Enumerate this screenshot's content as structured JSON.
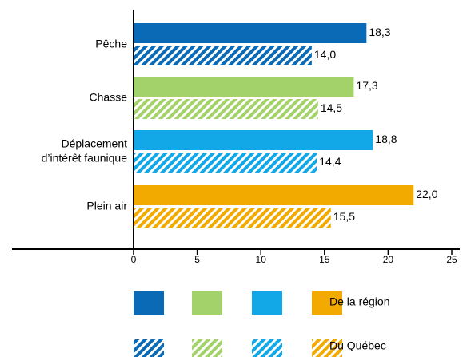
{
  "chart_data": {
    "type": "hbar",
    "categories": [
      "Pêche",
      "Chasse",
      "Déplacement\nd’intérêt faunique",
      "Plein air"
    ],
    "colors": [
      "#0a6ab5",
      "#a4d26a",
      "#12a8e8",
      "#f2a900"
    ],
    "series": [
      {
        "name": "De la région",
        "pattern": "solid",
        "values": [
          18.3,
          17.3,
          18.8,
          22.0
        ],
        "value_labels": [
          "18,3",
          "17,3",
          "18,8",
          "22,0"
        ]
      },
      {
        "name": "Du Québec",
        "pattern": "hatched",
        "values": [
          14.0,
          14.5,
          14.4,
          15.5
        ],
        "value_labels": [
          "14,0",
          "14,5",
          "14,4",
          "15,5"
        ]
      }
    ],
    "xlim": [
      0,
      25
    ],
    "xticks": [
      0,
      5,
      10,
      15,
      20,
      25
    ]
  }
}
